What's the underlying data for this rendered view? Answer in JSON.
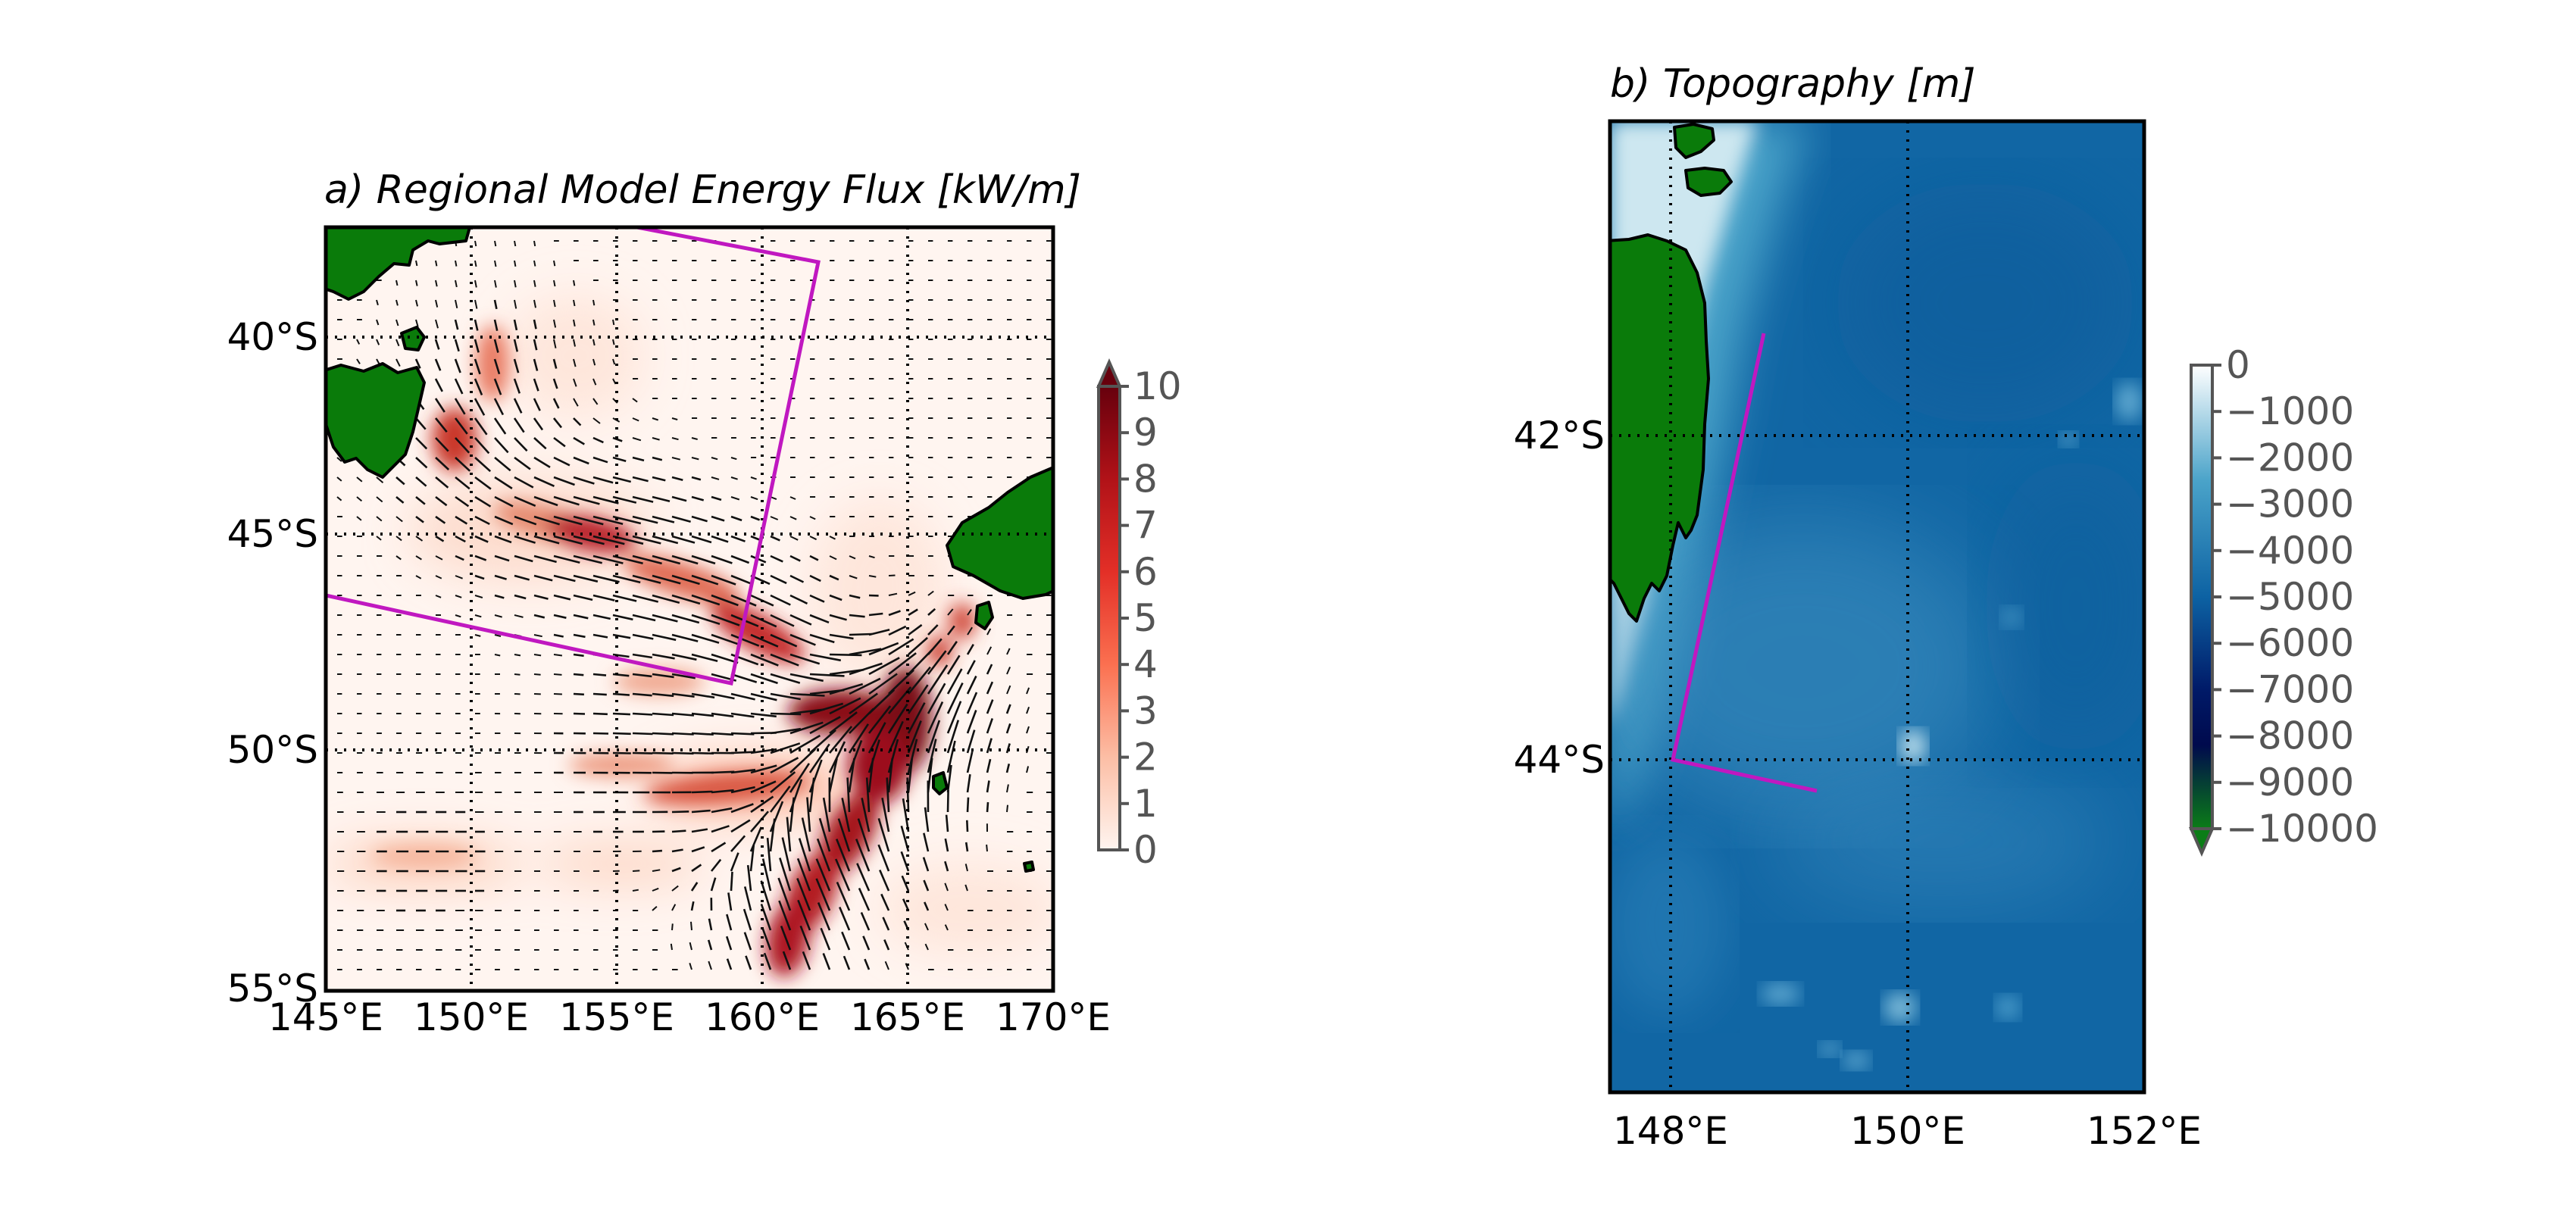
{
  "panel_a": {
    "title": "a) Regional Model Energy Flux [kW/m]",
    "lat_ticks": [
      "40°S",
      "45°S",
      "50°S",
      "55°S"
    ],
    "lon_ticks": [
      "145°E",
      "150°E",
      "155°E",
      "160°E",
      "165°E",
      "170°E"
    ],
    "colorbar": {
      "colormap": "Reds",
      "extend": "max",
      "ticks": [
        "10",
        "9",
        "8",
        "7",
        "6",
        "5",
        "4",
        "3",
        "2",
        "1",
        "0"
      ]
    },
    "extent": {
      "lon": [
        145,
        170
      ],
      "lat": [
        -55.5,
        -37.5
      ]
    },
    "section_color": "#c018c0"
  },
  "panel_b": {
    "title": "b) Topography [m]",
    "lat_ticks": [
      "42°S",
      "44°S"
    ],
    "lon_ticks": [
      "148°E",
      "150°E",
      "152°E"
    ],
    "colorbar": {
      "colormap": "ocean",
      "extend": "min",
      "ticks": [
        "0",
        "−1000",
        "−2000",
        "−3000",
        "−4000",
        "−5000",
        "−6000",
        "−7000",
        "−8000",
        "−9000",
        "−10000"
      ]
    },
    "extent": {
      "lon": [
        147.5,
        152
      ],
      "lat": [
        -45.5,
        -40.5
      ]
    },
    "land_color": "#0a7b0a"
  }
}
